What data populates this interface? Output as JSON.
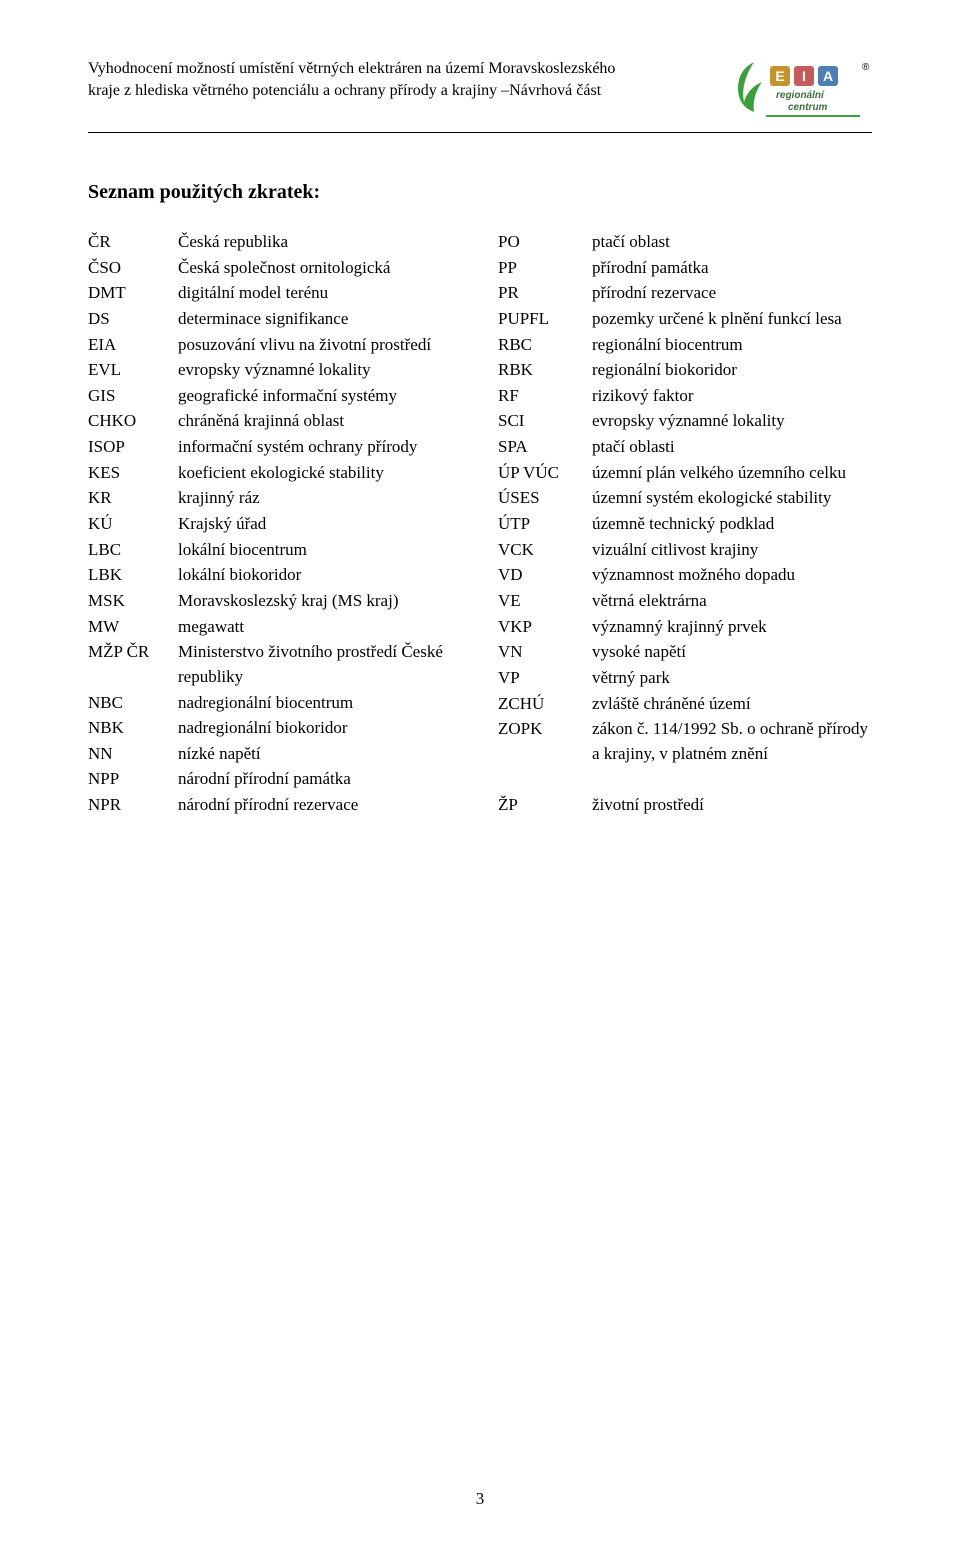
{
  "header": {
    "line1": "Vyhodnocení možností umístění větrných elektráren na území Moravskoslezského",
    "line2": "kraje z hlediska větrného potenciálu a ochrany přírody a krajiny –Návrhová část"
  },
  "logo": {
    "leaf_color": "#3b9f3b",
    "box1_color": "#c49330",
    "box2_color": "#c45c5c",
    "box3_color": "#4b7fb5",
    "text_top": "regionální",
    "text_bottom": "centrum",
    "text_mid": "EIA",
    "text_color": "#3b6f3b",
    "r_symbol": "®"
  },
  "title": "Seznam použitých zkratek:",
  "left": [
    {
      "code": "ČR",
      "desc": "Česká republika"
    },
    {
      "code": "ČSO",
      "desc": "Česká společnost ornitologická"
    },
    {
      "code": "DMT",
      "desc": "digitální model terénu"
    },
    {
      "code": "DS",
      "desc": "determinace signifikance"
    },
    {
      "code": "EIA",
      "desc": "posuzování vlivu na životní prostředí"
    },
    {
      "code": "EVL",
      "desc": "evropsky významné lokality"
    },
    {
      "code": "GIS",
      "desc": "geografické informační systémy"
    },
    {
      "code": "CHKO",
      "desc": "chráněná krajinná oblast"
    },
    {
      "code": "ISOP",
      "desc": "informační systém ochrany přírody"
    },
    {
      "code": "KES",
      "desc": "koeficient ekologické stability"
    },
    {
      "code": "KR",
      "desc": "krajinný ráz"
    },
    {
      "code": "KÚ",
      "desc": "Krajský úřad"
    },
    {
      "code": "LBC",
      "desc": "lokální biocentrum"
    },
    {
      "code": "LBK",
      "desc": "lokální biokoridor"
    },
    {
      "code": "MSK",
      "desc": "Moravskoslezský kraj (MS kraj)"
    },
    {
      "code": "MW",
      "desc": "megawatt"
    },
    {
      "code": "MŽP ČR",
      "desc": "Ministerstvo životního prostředí České republiky"
    },
    {
      "code": "NBC",
      "desc": "nadregionální biocentrum"
    },
    {
      "code": "NBK",
      "desc": "nadregionální biokoridor"
    },
    {
      "code": "NN",
      "desc": "nízké napětí"
    },
    {
      "code": "NPP",
      "desc": "národní přírodní památka"
    },
    {
      "code": "NPR",
      "desc": "národní přírodní rezervace"
    }
  ],
  "right": [
    {
      "code": "PO",
      "desc": "ptačí oblast"
    },
    {
      "code": "PP",
      "desc": "přírodní památka"
    },
    {
      "code": "PR",
      "desc": "přírodní rezervace"
    },
    {
      "code": "PUPFL",
      "desc": "pozemky určené k plnění funkcí lesa"
    },
    {
      "code": "RBC",
      "desc": "regionální biocentrum"
    },
    {
      "code": "RBK",
      "desc": "regionální biokoridor"
    },
    {
      "code": "RF",
      "desc": "rizikový faktor"
    },
    {
      "code": "SCI",
      "desc": "evropsky významné lokality"
    },
    {
      "code": "SPA",
      "desc": "ptačí oblasti"
    },
    {
      "code": "ÚP VÚC",
      "desc": "územní plán velkého územního celku"
    },
    {
      "code": "ÚSES",
      "desc": "územní systém ekologické stability"
    },
    {
      "code": "ÚTP",
      "desc": "územně technický podklad"
    },
    {
      "code": "VCK",
      "desc": "vizuální citlivost krajiny"
    },
    {
      "code": "VD",
      "desc": "významnost možného dopadu"
    },
    {
      "code": "VE",
      "desc": "větrná elektrárna"
    },
    {
      "code": "VKP",
      "desc": "významný krajinný prvek"
    },
    {
      "code": "VN",
      "desc": "vysoké napětí"
    },
    {
      "code": "VP",
      "desc": "větrný park"
    },
    {
      "code": "ZCHÚ",
      "desc": "zvláště chráněné území"
    },
    {
      "code": "ZOPK",
      "desc": "zákon č. 114/1992 Sb. o ochraně přírody a krajiny, v platném znění"
    },
    {
      "code": "",
      "desc": ""
    },
    {
      "code": "ŽP",
      "desc": "životní prostředí"
    }
  ],
  "page_number": "3"
}
